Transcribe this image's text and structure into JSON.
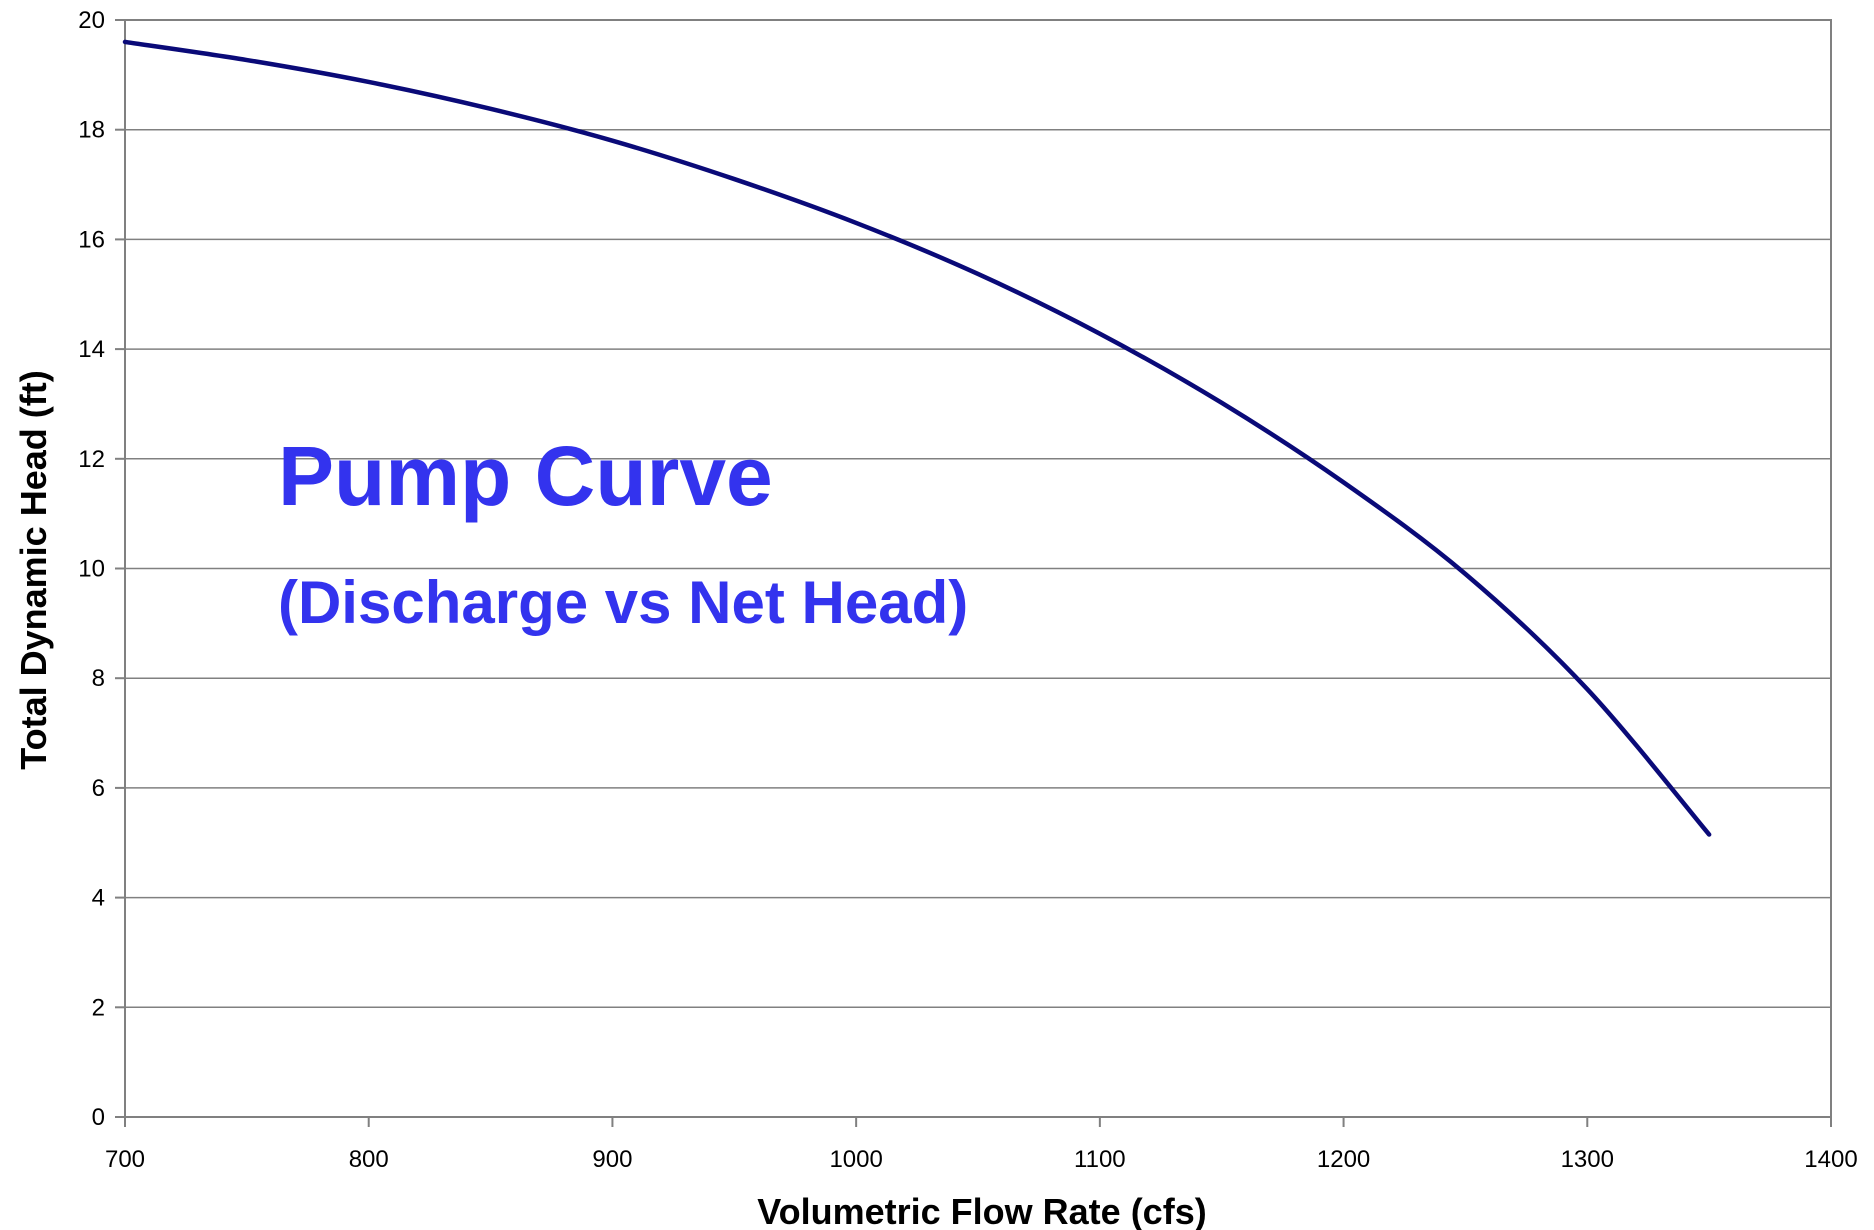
{
  "chart_data": {
    "type": "line",
    "title": "Pump Curve",
    "subtitle": "(Discharge vs Net Head)",
    "xlabel": "Volumetric Flow Rate (cfs)",
    "ylabel": "Total Dynamic Head (ft)",
    "xlim": [
      700,
      1400
    ],
    "ylim": [
      0,
      20
    ],
    "x_ticks": [
      700,
      800,
      900,
      1000,
      1100,
      1200,
      1300,
      1400
    ],
    "y_ticks": [
      0,
      2,
      4,
      6,
      8,
      10,
      12,
      14,
      16,
      18,
      20
    ],
    "grid": "horizontal",
    "legend": "none",
    "series": [
      {
        "x": [
          700,
          750,
          800,
          850,
          900,
          950,
          1000,
          1050,
          1100,
          1150,
          1200,
          1250,
          1300,
          1350
        ],
        "y": [
          19.6,
          19.27,
          18.87,
          18.38,
          17.8,
          17.1,
          16.3,
          15.37,
          14.28,
          13.02,
          11.57,
          9.9,
          7.8,
          5.15
        ],
        "color": "#0a0a78"
      }
    ],
    "colors": {
      "annotation": "#3333ee",
      "grid": "#808080",
      "axis": "#808080"
    }
  }
}
